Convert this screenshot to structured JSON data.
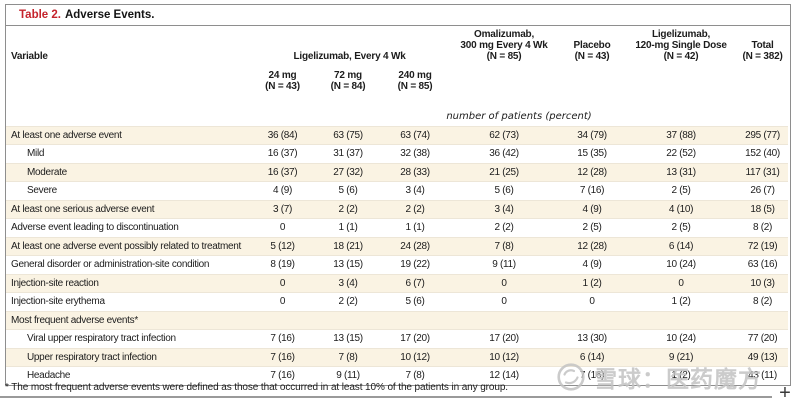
{
  "title": {
    "label": "Table 2.",
    "text": "Adverse Events."
  },
  "table": {
    "columns": {
      "variable": "Variable",
      "ligelizumab_group": "Ligelizumab, Every 4 Wk",
      "subcolumns": [
        "24 mg\n(N = 43)",
        "72 mg\n(N = 84)",
        "240 mg\n(N = 85)"
      ],
      "omalizumab": "Omalizumab,\n300 mg Every 4 Wk\n(N = 85)",
      "placebo": "Placebo\n(N = 43)",
      "ligelizumab_single": "Ligelizumab,\n120-mg Single Dose\n(N = 42)",
      "total": "Total\n(N = 382)"
    },
    "units_note": "number of patients (percent)",
    "rows": [
      {
        "label": "At least one adverse event",
        "indent": false,
        "values": [
          "36 (84)",
          "63 (75)",
          "63 (74)",
          "62 (73)",
          "34 (79)",
          "37 (88)",
          "295 (77)"
        ]
      },
      {
        "label": "Mild",
        "indent": true,
        "values": [
          "16 (37)",
          "31 (37)",
          "32 (38)",
          "36 (42)",
          "15 (35)",
          "22 (52)",
          "152 (40)"
        ]
      },
      {
        "label": "Moderate",
        "indent": true,
        "values": [
          "16 (37)",
          "27 (32)",
          "28 (33)",
          "21 (25)",
          "12 (28)",
          "13 (31)",
          "117 (31)"
        ]
      },
      {
        "label": "Severe",
        "indent": true,
        "values": [
          "4 (9)",
          "5 (6)",
          "3 (4)",
          "5 (6)",
          "7 (16)",
          "2 (5)",
          "26 (7)"
        ]
      },
      {
        "label": "At least one serious adverse event",
        "indent": false,
        "values": [
          "3 (7)",
          "2 (2)",
          "2 (2)",
          "3 (4)",
          "4 (9)",
          "4 (10)",
          "18 (5)"
        ]
      },
      {
        "label": "Adverse event leading to discontinuation",
        "indent": false,
        "values": [
          "0",
          "1 (1)",
          "1 (1)",
          "2 (2)",
          "2 (5)",
          "2 (5)",
          "8 (2)"
        ]
      },
      {
        "label": "At least one adverse event possibly related to treatment",
        "indent": false,
        "values": [
          "5 (12)",
          "18 (21)",
          "24 (28)",
          "7 (8)",
          "12 (28)",
          "6 (14)",
          "72 (19)"
        ]
      },
      {
        "label": "General disorder or administration-site condition",
        "indent": false,
        "values": [
          "8 (19)",
          "13 (15)",
          "19 (22)",
          "9 (11)",
          "4 (9)",
          "10 (24)",
          "63 (16)"
        ]
      },
      {
        "label": "Injection-site reaction",
        "indent": false,
        "values": [
          "0",
          "3 (4)",
          "6 (7)",
          "0",
          "1 (2)",
          "0",
          "10 (3)"
        ]
      },
      {
        "label": "Injection-site erythema",
        "indent": false,
        "values": [
          "0",
          "2 (2)",
          "5 (6)",
          "0",
          "0",
          "1 (2)",
          "8 (2)"
        ]
      },
      {
        "label": "Most frequent adverse events*",
        "indent": false,
        "values": [
          "",
          "",
          "",
          "",
          "",
          "",
          ""
        ]
      },
      {
        "label": "Viral upper respiratory tract infection",
        "indent": true,
        "values": [
          "7 (16)",
          "13 (15)",
          "17 (20)",
          "17 (20)",
          "13 (30)",
          "10 (24)",
          "77 (20)"
        ]
      },
      {
        "label": "Upper respiratory tract infection",
        "indent": true,
        "values": [
          "7 (16)",
          "7 (8)",
          "10 (12)",
          "10 (12)",
          "6 (14)",
          "9 (21)",
          "49 (13)"
        ]
      },
      {
        "label": "Headache",
        "indent": true,
        "values": [
          "7 (16)",
          "9 (11)",
          "7 (8)",
          "12 (14)",
          "7 (16)",
          "1 (2)",
          "43 (11)"
        ]
      }
    ]
  },
  "footnote": "* The most frequent adverse events were defined as those that occurred in at least 10% of the patients in any group.",
  "watermark": {
    "source": "雪球",
    "separator": "：",
    "account": "医药魔方",
    "logo": "xueqiu-snowball-icon"
  },
  "viewer": {
    "zoom_in_label": "+"
  },
  "colors": {
    "stripe": "#FAF3E3",
    "border": "#8E8E8E",
    "title_red": "#C5232C",
    "text": "#1C1C1C",
    "watermark_gray": "#C3C3C3"
  }
}
